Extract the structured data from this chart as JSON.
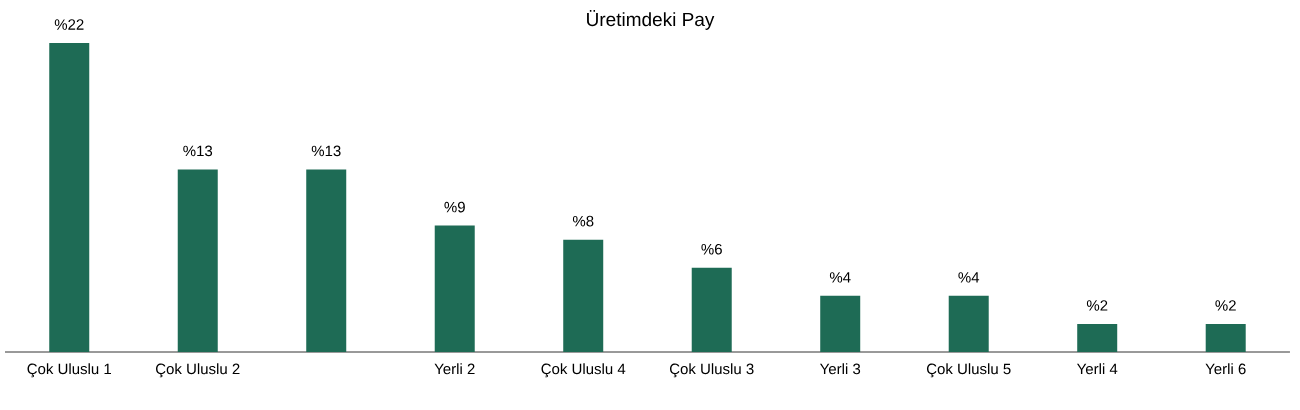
{
  "chart_data": {
    "type": "bar",
    "title": "Üretimdeki Pay",
    "categories": [
      "Çok Uluslu 1",
      "Çok Uluslu 2",
      null,
      "Yerli 2",
      "Çok Uluslu 4",
      "Çok Uluslu 3",
      "Yerli 3",
      "Çok Uluslu 5",
      "Yerli 4",
      "Yerli 6"
    ],
    "values": [
      22,
      13,
      13,
      9,
      8,
      6,
      4,
      4,
      2,
      2
    ],
    "value_labels": [
      "%22",
      "%13",
      "%13",
      "%9",
      "%8",
      "%6",
      "%4",
      "%4",
      "%2",
      "%2"
    ],
    "color": "#1e6b55"
  }
}
